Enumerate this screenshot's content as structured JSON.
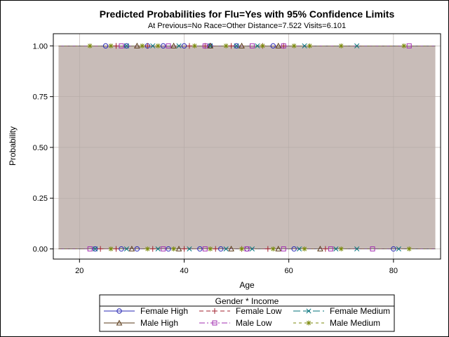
{
  "chart_data": {
    "type": "scatter",
    "title": "Predicted Probabilities for Flu=Yes with 95% Confidence Limits",
    "subtitle": "At Previous=No Race=Other Distance=7.522 Visits=6.101",
    "xlabel": "Age",
    "ylabel": "Probability",
    "xlim": [
      15,
      89
    ],
    "ylim": [
      -0.05,
      1.06
    ],
    "x_ticks": [
      20,
      40,
      60,
      80
    ],
    "x_tick_labels": [
      "20",
      "40",
      "60",
      "80"
    ],
    "y_ticks": [
      0,
      0.25,
      0.5,
      0.75,
      1
    ],
    "y_tick_labels": [
      "0.00",
      "0.25",
      "0.50",
      "0.75",
      "1.00"
    ],
    "grid": true,
    "confidence_band": {
      "x": [
        16,
        88
      ],
      "lower": 0.0,
      "upper": 1.0,
      "color": "#c8bcb8"
    },
    "legend": {
      "title": "Gender * Income",
      "placement": "bottom",
      "entries": [
        "Female High",
        "Female Low",
        "Female Medium",
        "Male High",
        "Male Low",
        "Male Medium"
      ]
    },
    "series": [
      {
        "name": "Female High",
        "color": "#2a2ab4",
        "marker": "circle",
        "dash": "",
        "x": [
          25,
          29,
          33,
          36,
          40,
          45,
          50,
          57,
          23,
          28,
          31,
          37,
          43,
          47,
          52,
          61,
          80
        ],
        "y": [
          1,
          1,
          1,
          1,
          1,
          1,
          1,
          1,
          0,
          0,
          0,
          0,
          0,
          0,
          0,
          0,
          0
        ]
      },
      {
        "name": "Female Low",
        "color": "#a01f2c",
        "marker": "plus",
        "dash": "6 4",
        "x": [
          27,
          33,
          41,
          44,
          49,
          55,
          59,
          24,
          27,
          34,
          40,
          46,
          51,
          56,
          67
        ],
        "y": [
          1,
          1,
          1,
          1,
          1,
          1,
          1,
          0,
          0,
          0,
          0,
          0,
          0,
          0,
          0
        ]
      },
      {
        "name": "Female Medium",
        "color": "#00707a",
        "marker": "x",
        "dash": "10 4",
        "x": [
          29,
          34,
          39,
          45,
          50,
          54,
          63,
          73,
          23,
          29,
          35,
          41,
          48,
          53,
          62,
          69,
          73,
          81
        ],
        "y": [
          1,
          1,
          1,
          1,
          1,
          1,
          1,
          1,
          0,
          0,
          0,
          0,
          0,
          0,
          0,
          0,
          0,
          0
        ]
      },
      {
        "name": "Male High",
        "color": "#5a3a18",
        "marker": "triangle",
        "dash": "",
        "x": [
          31,
          38,
          45,
          51,
          58,
          30,
          39,
          49,
          58,
          66
        ],
        "y": [
          1,
          1,
          1,
          1,
          1,
          0,
          0,
          0,
          0,
          0
        ]
      },
      {
        "name": "Male Low",
        "color": "#a22eb0",
        "marker": "square",
        "dash": "8 3 2 3",
        "x": [
          28,
          37,
          44,
          53,
          59,
          83,
          22,
          36,
          44,
          52,
          59,
          68,
          76
        ],
        "y": [
          1,
          1,
          1,
          1,
          1,
          1,
          0,
          0,
          0,
          0,
          0,
          0,
          0
        ]
      },
      {
        "name": "Male Medium",
        "color": "#7b8a0c",
        "marker": "star",
        "dash": "4 4",
        "x": [
          22,
          26,
          32,
          35,
          42,
          48,
          55,
          61,
          64,
          70,
          82,
          26,
          33,
          38,
          45,
          51,
          57,
          63,
          70,
          83
        ],
        "y": [
          1,
          1,
          1,
          1,
          1,
          1,
          1,
          1,
          1,
          1,
          1,
          0,
          0,
          0,
          0,
          0,
          0,
          0,
          0,
          0
        ]
      }
    ]
  }
}
